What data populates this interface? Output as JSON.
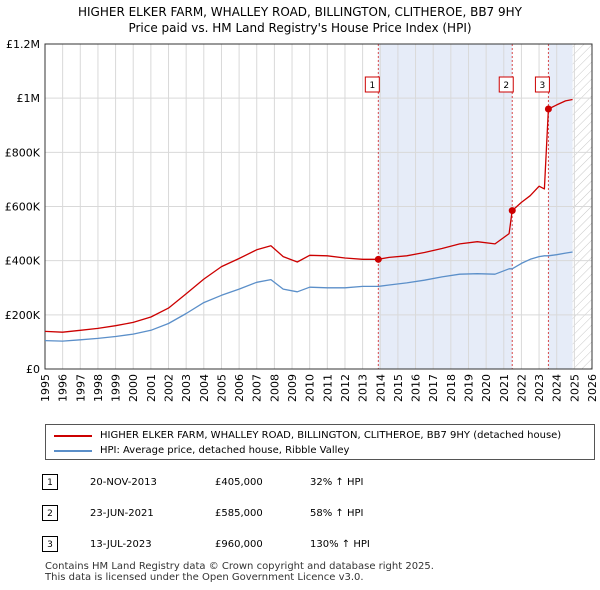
{
  "header": {
    "title": "HIGHER ELKER FARM, WHALLEY ROAD, BILLINGTON, CLITHEROE, BB7 9HY",
    "subtitle": "Price paid vs. HM Land Registry's House Price Index (HPI)"
  },
  "chart_data": {
    "type": "line",
    "ylim": [
      0,
      1200000
    ],
    "xlim": [
      1995.0,
      2026.0
    ],
    "y_ticks": [
      0,
      200000,
      400000,
      600000,
      800000,
      1000000,
      1200000
    ],
    "y_tick_labels": [
      "£0",
      "£200K",
      "£400K",
      "£600K",
      "£800K",
      "£1M",
      "£1.2M"
    ],
    "x_ticks": [
      1995,
      1996,
      1997,
      1998,
      1999,
      2000,
      2001,
      2002,
      2003,
      2004,
      2005,
      2006,
      2007,
      2008,
      2009,
      2010,
      2011,
      2012,
      2013,
      2014,
      2015,
      2016,
      2017,
      2018,
      2019,
      2020,
      2021,
      2022,
      2023,
      2024,
      2025,
      2026
    ],
    "x_tick_labels": [
      "1995",
      "1996",
      "1997",
      "1998",
      "1999",
      "2000",
      "2001",
      "2002",
      "2003",
      "2004",
      "2005",
      "2006",
      "2007",
      "2008",
      "2009",
      "2010",
      "2011",
      "2012",
      "2013",
      "2014",
      "2015",
      "2016",
      "2017",
      "2018",
      "2019",
      "2020",
      "2021",
      "2022",
      "2023",
      "2024",
      "2025",
      "2026"
    ],
    "grid": true,
    "shaded_spans": [
      [
        2013.89,
        2021.48
      ],
      [
        2023.53,
        2024.9
      ]
    ],
    "hatched_future_from": 2024.9,
    "series": [
      {
        "name": "HIGHER ELKER FARM, WHALLEY ROAD, BILLINGTON, CLITHEROE, BB7 9HY (detached house)",
        "color": "#cc0000",
        "x": [
          1995.0,
          1996.0,
          1997.0,
          1998.0,
          1999.0,
          2000.0,
          2001.0,
          2002.0,
          2003.0,
          2004.0,
          2005.0,
          2006.0,
          2007.0,
          2007.8,
          2008.5,
          2009.3,
          2010.0,
          2011.0,
          2012.0,
          2013.0,
          2013.89,
          2014.5,
          2015.5,
          2016.5,
          2017.5,
          2018.5,
          2019.5,
          2020.5,
          2021.3,
          2021.48,
          2022.0,
          2022.5,
          2023.0,
          2023.3,
          2023.53,
          2024.0,
          2024.5,
          2024.9
        ],
        "y": [
          139000,
          136000,
          143000,
          150000,
          160000,
          172000,
          192000,
          225000,
          278000,
          332000,
          378000,
          408000,
          440000,
          455000,
          415000,
          395000,
          420000,
          418000,
          410000,
          405000,
          405000,
          412000,
          418000,
          430000,
          445000,
          462000,
          470000,
          462000,
          500000,
          585000,
          615000,
          640000,
          675000,
          665000,
          960000,
          975000,
          990000,
          995000
        ]
      },
      {
        "name": "HPI: Average price, detached house, Ribble Valley",
        "color": "#5b8fc9",
        "x": [
          1995.0,
          1996.0,
          1997.0,
          1998.0,
          1999.0,
          2000.0,
          2001.0,
          2002.0,
          2003.0,
          2004.0,
          2005.0,
          2006.0,
          2007.0,
          2007.8,
          2008.5,
          2009.3,
          2010.0,
          2011.0,
          2012.0,
          2013.0,
          2013.89,
          2014.5,
          2015.5,
          2016.5,
          2017.5,
          2018.5,
          2019.5,
          2020.5,
          2021.3,
          2021.48,
          2022.0,
          2022.5,
          2023.0,
          2023.3,
          2023.53,
          2024.0,
          2024.5,
          2024.9
        ],
        "y": [
          105000,
          103000,
          108000,
          113000,
          120000,
          129000,
          143000,
          168000,
          205000,
          245000,
          272000,
          295000,
          320000,
          330000,
          295000,
          285000,
          302000,
          300000,
          300000,
          305000,
          305000,
          310000,
          318000,
          328000,
          340000,
          350000,
          352000,
          350000,
          370000,
          370000,
          390000,
          405000,
          415000,
          418000,
          418000,
          422000,
          428000,
          432000
        ]
      }
    ],
    "sales": [
      {
        "label": "1",
        "x": 2013.89,
        "y": 405000
      },
      {
        "label": "2",
        "x": 2021.48,
        "y": 585000
      },
      {
        "label": "3",
        "x": 2023.53,
        "y": 960000
      }
    ]
  },
  "legend": {
    "red_label": "HIGHER ELKER FARM, WHALLEY ROAD, BILLINGTON, CLITHEROE, BB7 9HY (detached house)",
    "blue_label": "HPI: Average price, detached house, Ribble Valley"
  },
  "sales_table": [
    {
      "num": "1",
      "date": "20-NOV-2013",
      "price": "£405,000",
      "hpi": "32% ↑ HPI"
    },
    {
      "num": "2",
      "date": "23-JUN-2021",
      "price": "£585,000",
      "hpi": "58% ↑ HPI"
    },
    {
      "num": "3",
      "date": "13-JUL-2023",
      "price": "£960,000",
      "hpi": "130% ↑ HPI"
    }
  ],
  "footer": {
    "line1": "Contains HM Land Registry data © Crown copyright and database right 2025.",
    "line2": "This data is licensed under the Open Government Licence v3.0."
  }
}
